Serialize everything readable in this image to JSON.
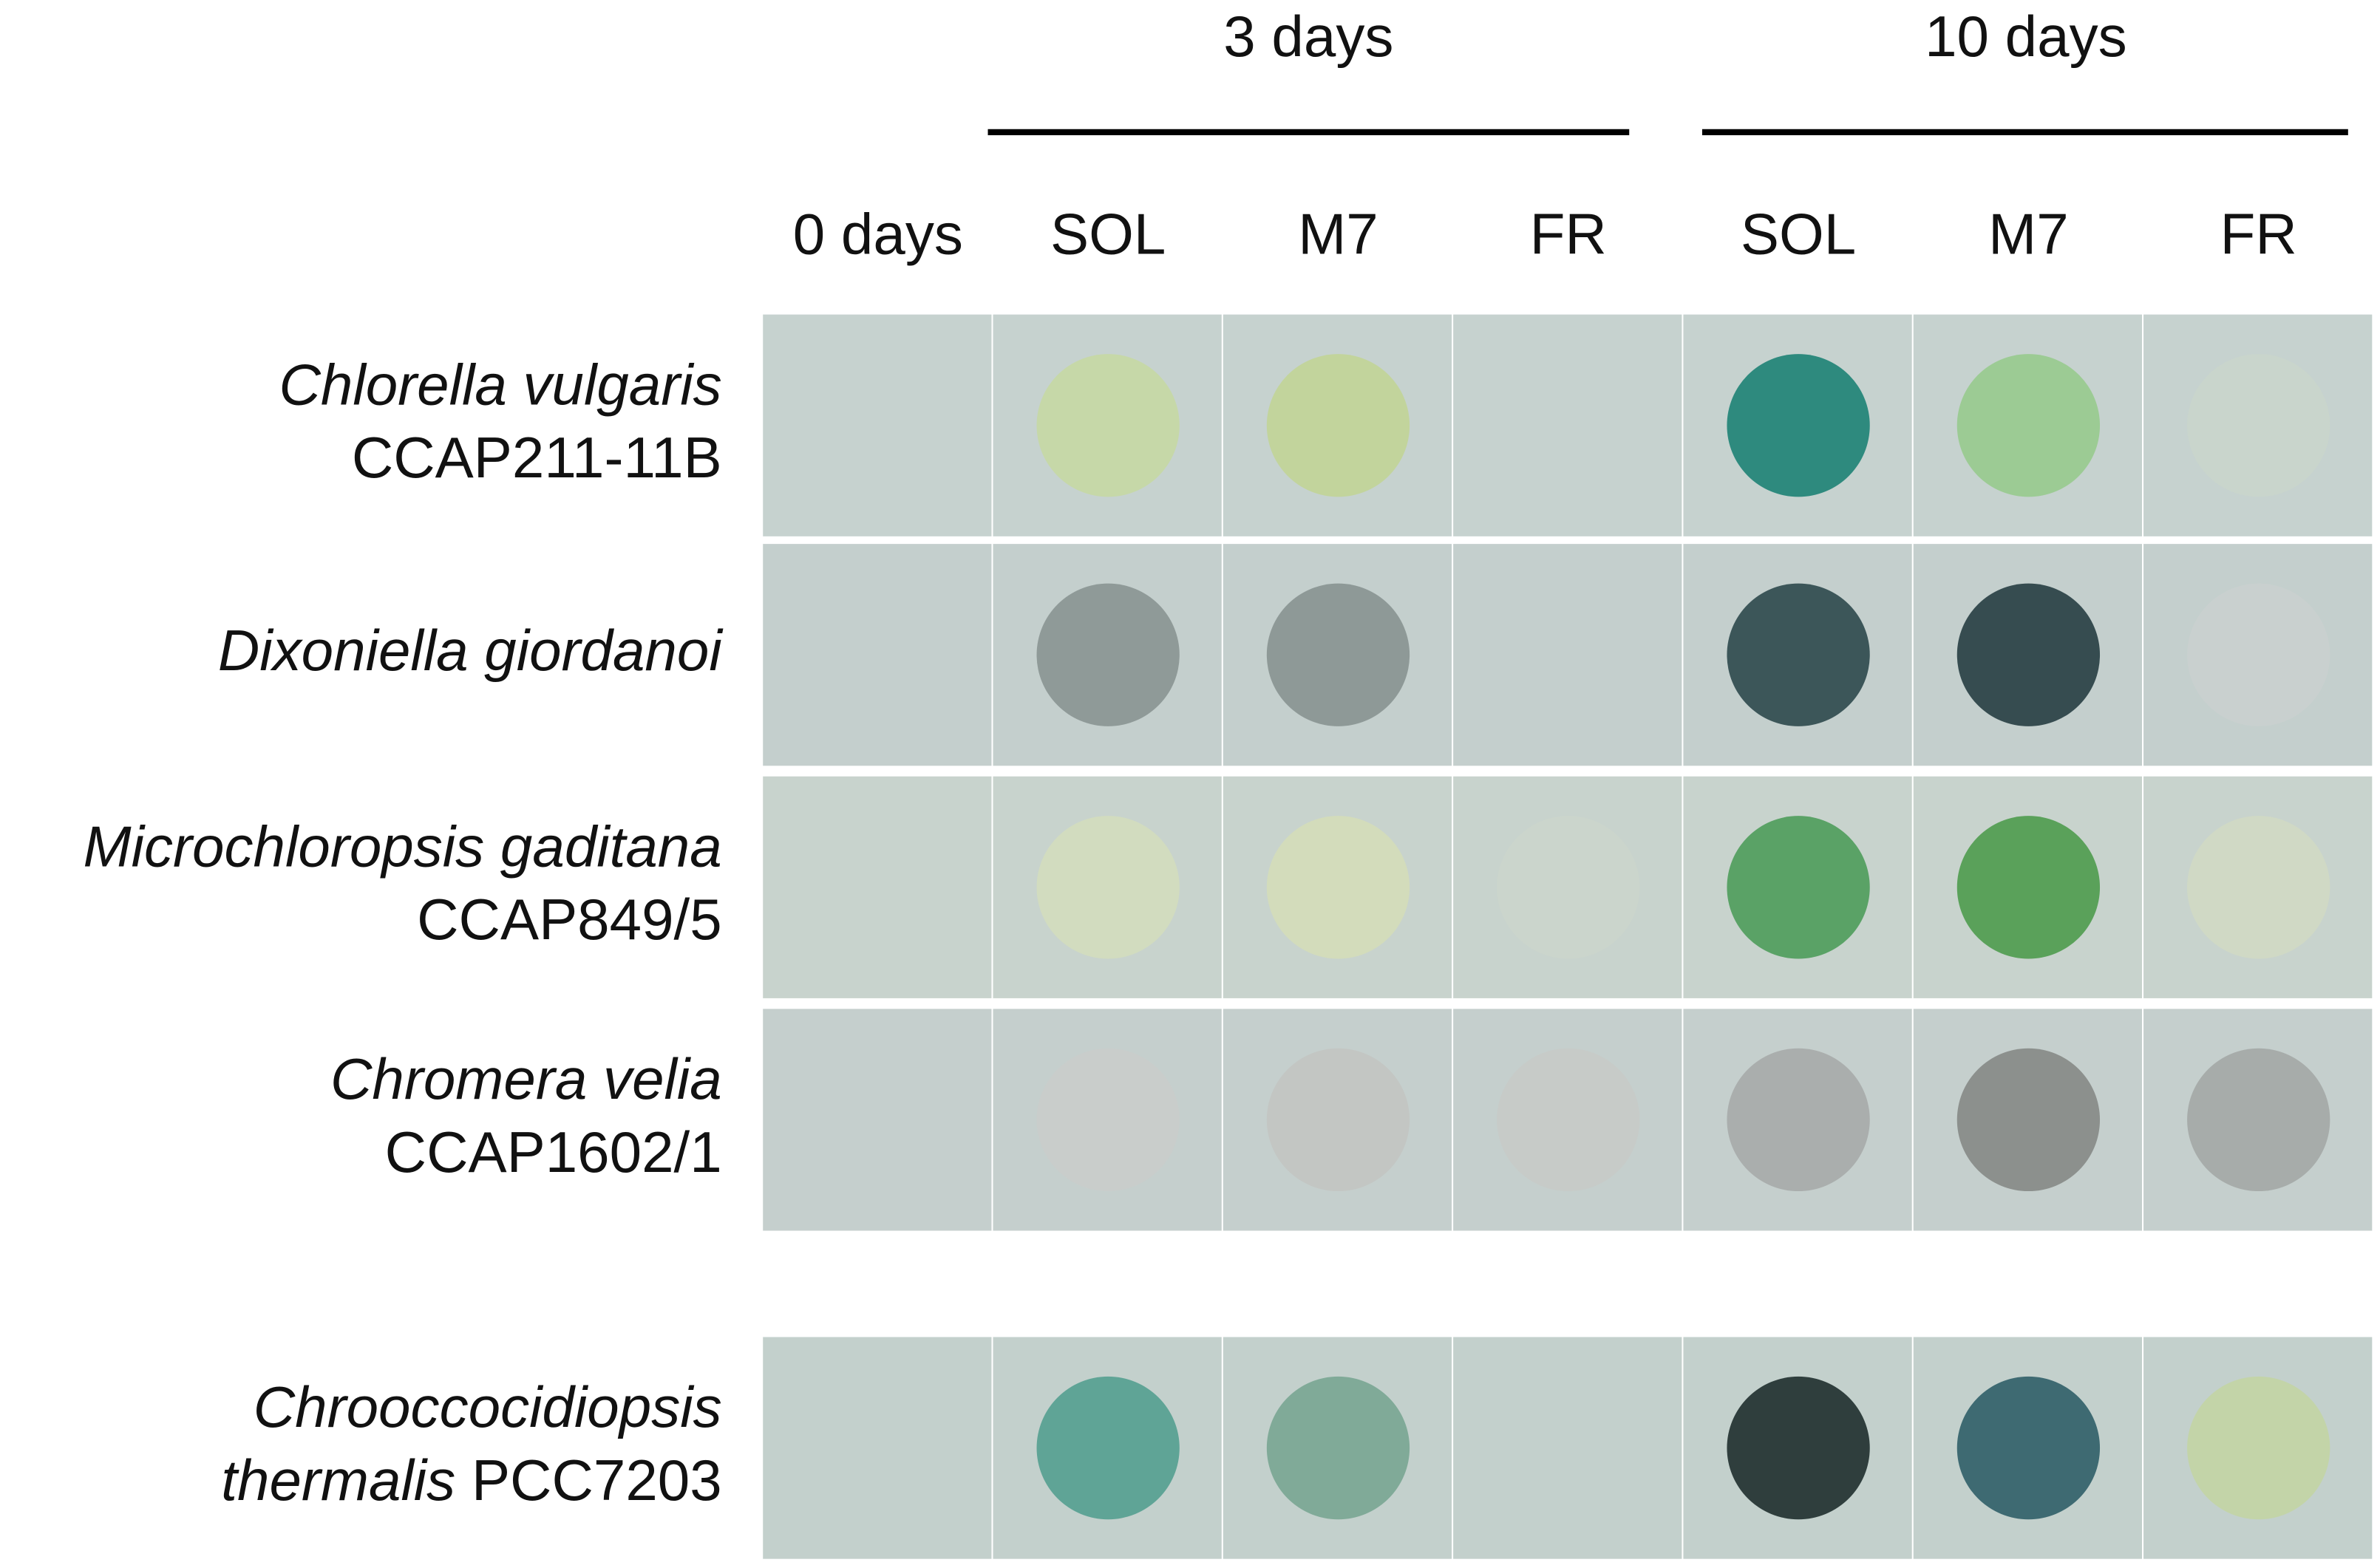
{
  "header": {
    "groups": [
      {
        "label": "3 days"
      },
      {
        "label": "10 days"
      }
    ],
    "columns": [
      "0 days",
      "SOL",
      "M7",
      "FR",
      "SOL",
      "M7",
      "FR"
    ]
  },
  "rows": [
    {
      "label": [
        [
          {
            "text": "Chlorella vulgaris",
            "italic": true
          }
        ],
        [
          {
            "text": "CCAP211-11B",
            "italic": false
          }
        ]
      ],
      "spot_colors": [
        null,
        "#c6d8a8",
        "#c2d49c",
        null,
        "#2e8a7e",
        "#9ccb94",
        "#c9d5cc"
      ]
    },
    {
      "label": [
        [
          {
            "text": "Dixoniella giordanoi",
            "italic": true
          }
        ]
      ],
      "spot_colors": [
        null,
        "#8f9a98",
        "#8e9997",
        null,
        "#3c5659",
        "#364c50",
        "#c9d0cf"
      ]
    },
    {
      "label": [
        [
          {
            "text": "Microchloropsis gaditana",
            "italic": true
          }
        ],
        [
          {
            "text": "CCAP849/5",
            "italic": false
          }
        ]
      ],
      "spot_colors": [
        null,
        "#d2dcbf",
        "#d3dcbb",
        "#cbd5cc",
        "#5aa266",
        "#5aa15a",
        "#d0d9c5"
      ]
    },
    {
      "label": [
        [
          {
            "text": "Chromera velia",
            "italic": true
          }
        ],
        [
          {
            "text": "CCAP1602/1",
            "italic": false
          }
        ]
      ],
      "spot_colors": [
        null,
        "#c9cdcb",
        "#c3c6c3",
        "#c7cbc8",
        "#aaaead",
        "#8c908d",
        "#a7acaa"
      ]
    },
    {
      "label": [
        [
          {
            "text": "Chrooccocidiopsis",
            "italic": true
          }
        ],
        [
          {
            "text": "thermalis",
            "italic": true
          },
          {
            "text": " PCC7203",
            "italic": false
          }
        ]
      ],
      "spot_colors": [
        null,
        "#5fa496",
        "#80aa98",
        null,
        "#2f3e3d",
        "#3e6a72",
        "#c3d4a8"
      ]
    }
  ]
}
